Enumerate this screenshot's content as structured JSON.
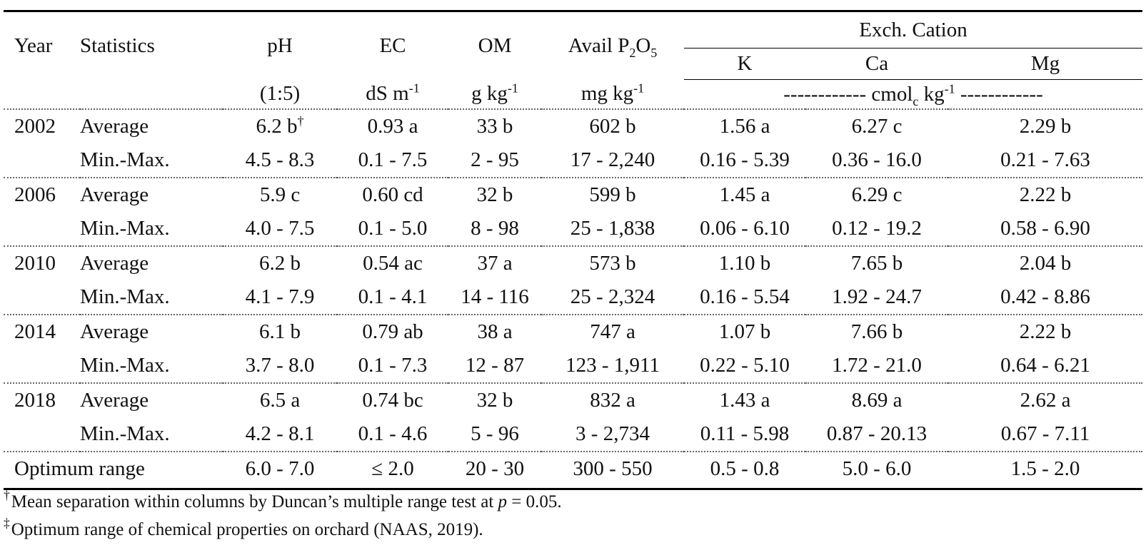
{
  "headers": {
    "year": "Year",
    "statistics": "Statistics",
    "ph": "pH",
    "ec": "EC",
    "om": "OM",
    "avail_p2o5": "Avail P",
    "avail_p2o5_sub2": "2",
    "avail_p2o5_o": "O",
    "avail_p2o5_sub5": "5",
    "exch_cation": "Exch. Cation",
    "k": "K",
    "ca": "Ca",
    "mg": "Mg"
  },
  "units": {
    "ph": "(1:5)",
    "ec": "dS m",
    "ec_sup": "-1",
    "om": "g kg",
    "om_sup": "-1",
    "avail_p2o5": "mg kg",
    "avail_p2o5_sup": "-1",
    "cation_dashes_left": "------------ cmol",
    "cation_sub": "c",
    "cation_mid": " kg",
    "cation_sup": "-1",
    "cation_dashes_right": " ------------"
  },
  "rows": [
    {
      "year": "2002",
      "stat": "Average",
      "ph": "6.2 b",
      "ph_mark": "†",
      "ec": "0.93 a",
      "om": "33 b",
      "p2o5": "602 b",
      "k": "1.56 a",
      "ca": "6.27 c",
      "mg": "2.29 b"
    },
    {
      "year": "",
      "stat": "Min.-Max.",
      "ph": "4.5 - 8.3",
      "ec": "0.1 - 7.5",
      "om": "2 - 95",
      "p2o5": "17 - 2,240",
      "k": "0.16 - 5.39",
      "ca": "0.36 - 16.0",
      "mg": "0.21 - 7.63"
    },
    {
      "year": "2006",
      "stat": "Average",
      "ph": "5.9 c",
      "ec": "0.60 cd",
      "om": "32 b",
      "p2o5": "599 b",
      "k": "1.45 a",
      "ca": "6.29 c",
      "mg": "2.22 b"
    },
    {
      "year": "",
      "stat": "Min.-Max.",
      "ph": "4.0 - 7.5",
      "ec": "0.1 - 5.0",
      "om": "8 - 98",
      "p2o5": "25 - 1,838",
      "k": "0.06 - 6.10",
      "ca": "0.12 - 19.2",
      "mg": "0.58 - 6.90"
    },
    {
      "year": "2010",
      "stat": "Average",
      "ph": "6.2 b",
      "ec": "0.54 ac",
      "om": "37 a",
      "p2o5": "573 b",
      "k": "1.10 b",
      "ca": "7.65 b",
      "mg": "2.04 b"
    },
    {
      "year": "",
      "stat": "Min.-Max.",
      "ph": "4.1 - 7.9",
      "ec": "0.1 - 4.1",
      "om": "14 - 116",
      "p2o5": "25 - 2,324",
      "k": "0.16 - 5.54",
      "ca": "1.92 - 24.7",
      "mg": "0.42 - 8.86"
    },
    {
      "year": "2014",
      "stat": "Average",
      "ph": "6.1 b",
      "ec": "0.79 ab",
      "om": "38 a",
      "p2o5": "747 a",
      "k": "1.07 b",
      "ca": "7.66 b",
      "mg": "2.22 b"
    },
    {
      "year": "",
      "stat": "Min.-Max.",
      "ph": "3.7 - 8.0",
      "ec": "0.1 - 7.3",
      "om": "12 - 87",
      "p2o5": "123 - 1,911",
      "k": "0.22 - 5.10",
      "ca": "1.72 - 21.0",
      "mg": "0.64 - 6.21"
    },
    {
      "year": "2018",
      "stat": "Average",
      "ph": "6.5 a",
      "ec": "0.74 bc",
      "om": "32 b",
      "p2o5": "832 a",
      "k": "1.43 a",
      "ca": "8.69 a",
      "mg": "2.62 a"
    },
    {
      "year": "",
      "stat": "Min.-Max.",
      "ph": "4.2 - 8.1",
      "ec": "0.1 - 4.6",
      "om": "5 - 96",
      "p2o5": "3 - 2,734",
      "k": "0.11 - 5.98",
      "ca": "0.87 - 20.13",
      "mg": "0.67 - 7.11"
    }
  ],
  "optimum": {
    "label": "Optimum range",
    "ph": "6.0 - 7.0",
    "ec": "≤ 2.0",
    "om": "20 - 30",
    "p2o5": "300 - 550",
    "k": "0.5 - 0.8",
    "ca": "5.0 - 6.0",
    "mg": "1.5 - 2.0"
  },
  "footnotes": [
    {
      "mark": "†",
      "text_before": "Mean separation within columns by Duncan’s multiple range test at ",
      "italic": "p",
      "text_after": " = 0.05."
    },
    {
      "mark": "‡",
      "text": "Optimum range of chemical properties on orchard (NAAS, 2019)."
    }
  ]
}
